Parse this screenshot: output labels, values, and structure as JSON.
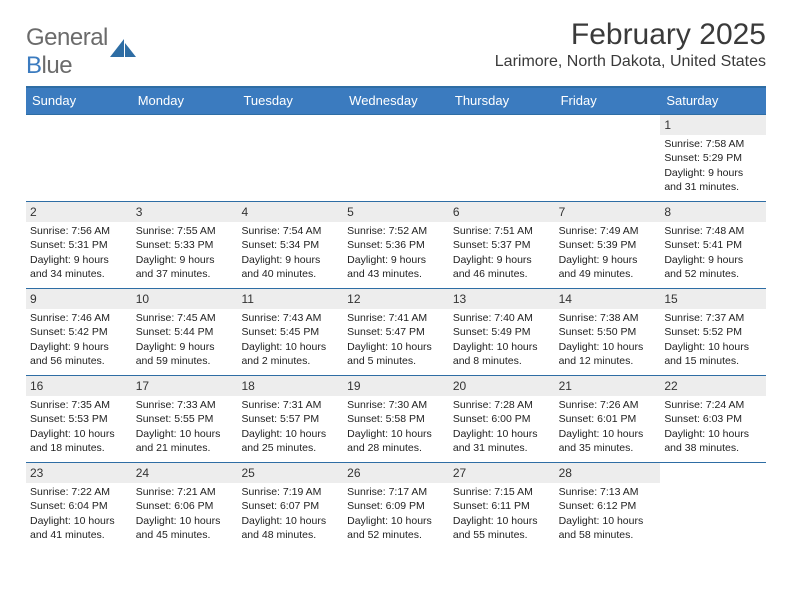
{
  "logo": {
    "word1": "General",
    "word2_first": "B",
    "word2_rest": "lue"
  },
  "title": "February 2025",
  "location": "Larimore, North Dakota, United States",
  "colors": {
    "header_bg": "#3b7bbf",
    "header_text": "#ffffff",
    "rule": "#2e6da4",
    "daynum_bg": "#ededed",
    "text": "#222222",
    "logo_gray": "#6b6b6b"
  },
  "day_names": [
    "Sunday",
    "Monday",
    "Tuesday",
    "Wednesday",
    "Thursday",
    "Friday",
    "Saturday"
  ],
  "weeks": [
    [
      {
        "n": "",
        "sr": "",
        "ss": "",
        "dl": ""
      },
      {
        "n": "",
        "sr": "",
        "ss": "",
        "dl": ""
      },
      {
        "n": "",
        "sr": "",
        "ss": "",
        "dl": ""
      },
      {
        "n": "",
        "sr": "",
        "ss": "",
        "dl": ""
      },
      {
        "n": "",
        "sr": "",
        "ss": "",
        "dl": ""
      },
      {
        "n": "",
        "sr": "",
        "ss": "",
        "dl": ""
      },
      {
        "n": "1",
        "sr": "Sunrise: 7:58 AM",
        "ss": "Sunset: 5:29 PM",
        "dl": "Daylight: 9 hours and 31 minutes."
      }
    ],
    [
      {
        "n": "2",
        "sr": "Sunrise: 7:56 AM",
        "ss": "Sunset: 5:31 PM",
        "dl": "Daylight: 9 hours and 34 minutes."
      },
      {
        "n": "3",
        "sr": "Sunrise: 7:55 AM",
        "ss": "Sunset: 5:33 PM",
        "dl": "Daylight: 9 hours and 37 minutes."
      },
      {
        "n": "4",
        "sr": "Sunrise: 7:54 AM",
        "ss": "Sunset: 5:34 PM",
        "dl": "Daylight: 9 hours and 40 minutes."
      },
      {
        "n": "5",
        "sr": "Sunrise: 7:52 AM",
        "ss": "Sunset: 5:36 PM",
        "dl": "Daylight: 9 hours and 43 minutes."
      },
      {
        "n": "6",
        "sr": "Sunrise: 7:51 AM",
        "ss": "Sunset: 5:37 PM",
        "dl": "Daylight: 9 hours and 46 minutes."
      },
      {
        "n": "7",
        "sr": "Sunrise: 7:49 AM",
        "ss": "Sunset: 5:39 PM",
        "dl": "Daylight: 9 hours and 49 minutes."
      },
      {
        "n": "8",
        "sr": "Sunrise: 7:48 AM",
        "ss": "Sunset: 5:41 PM",
        "dl": "Daylight: 9 hours and 52 minutes."
      }
    ],
    [
      {
        "n": "9",
        "sr": "Sunrise: 7:46 AM",
        "ss": "Sunset: 5:42 PM",
        "dl": "Daylight: 9 hours and 56 minutes."
      },
      {
        "n": "10",
        "sr": "Sunrise: 7:45 AM",
        "ss": "Sunset: 5:44 PM",
        "dl": "Daylight: 9 hours and 59 minutes."
      },
      {
        "n": "11",
        "sr": "Sunrise: 7:43 AM",
        "ss": "Sunset: 5:45 PM",
        "dl": "Daylight: 10 hours and 2 minutes."
      },
      {
        "n": "12",
        "sr": "Sunrise: 7:41 AM",
        "ss": "Sunset: 5:47 PM",
        "dl": "Daylight: 10 hours and 5 minutes."
      },
      {
        "n": "13",
        "sr": "Sunrise: 7:40 AM",
        "ss": "Sunset: 5:49 PM",
        "dl": "Daylight: 10 hours and 8 minutes."
      },
      {
        "n": "14",
        "sr": "Sunrise: 7:38 AM",
        "ss": "Sunset: 5:50 PM",
        "dl": "Daylight: 10 hours and 12 minutes."
      },
      {
        "n": "15",
        "sr": "Sunrise: 7:37 AM",
        "ss": "Sunset: 5:52 PM",
        "dl": "Daylight: 10 hours and 15 minutes."
      }
    ],
    [
      {
        "n": "16",
        "sr": "Sunrise: 7:35 AM",
        "ss": "Sunset: 5:53 PM",
        "dl": "Daylight: 10 hours and 18 minutes."
      },
      {
        "n": "17",
        "sr": "Sunrise: 7:33 AM",
        "ss": "Sunset: 5:55 PM",
        "dl": "Daylight: 10 hours and 21 minutes."
      },
      {
        "n": "18",
        "sr": "Sunrise: 7:31 AM",
        "ss": "Sunset: 5:57 PM",
        "dl": "Daylight: 10 hours and 25 minutes."
      },
      {
        "n": "19",
        "sr": "Sunrise: 7:30 AM",
        "ss": "Sunset: 5:58 PM",
        "dl": "Daylight: 10 hours and 28 minutes."
      },
      {
        "n": "20",
        "sr": "Sunrise: 7:28 AM",
        "ss": "Sunset: 6:00 PM",
        "dl": "Daylight: 10 hours and 31 minutes."
      },
      {
        "n": "21",
        "sr": "Sunrise: 7:26 AM",
        "ss": "Sunset: 6:01 PM",
        "dl": "Daylight: 10 hours and 35 minutes."
      },
      {
        "n": "22",
        "sr": "Sunrise: 7:24 AM",
        "ss": "Sunset: 6:03 PM",
        "dl": "Daylight: 10 hours and 38 minutes."
      }
    ],
    [
      {
        "n": "23",
        "sr": "Sunrise: 7:22 AM",
        "ss": "Sunset: 6:04 PM",
        "dl": "Daylight: 10 hours and 41 minutes."
      },
      {
        "n": "24",
        "sr": "Sunrise: 7:21 AM",
        "ss": "Sunset: 6:06 PM",
        "dl": "Daylight: 10 hours and 45 minutes."
      },
      {
        "n": "25",
        "sr": "Sunrise: 7:19 AM",
        "ss": "Sunset: 6:07 PM",
        "dl": "Daylight: 10 hours and 48 minutes."
      },
      {
        "n": "26",
        "sr": "Sunrise: 7:17 AM",
        "ss": "Sunset: 6:09 PM",
        "dl": "Daylight: 10 hours and 52 minutes."
      },
      {
        "n": "27",
        "sr": "Sunrise: 7:15 AM",
        "ss": "Sunset: 6:11 PM",
        "dl": "Daylight: 10 hours and 55 minutes."
      },
      {
        "n": "28",
        "sr": "Sunrise: 7:13 AM",
        "ss": "Sunset: 6:12 PM",
        "dl": "Daylight: 10 hours and 58 minutes."
      },
      {
        "n": "",
        "sr": "",
        "ss": "",
        "dl": ""
      }
    ]
  ]
}
